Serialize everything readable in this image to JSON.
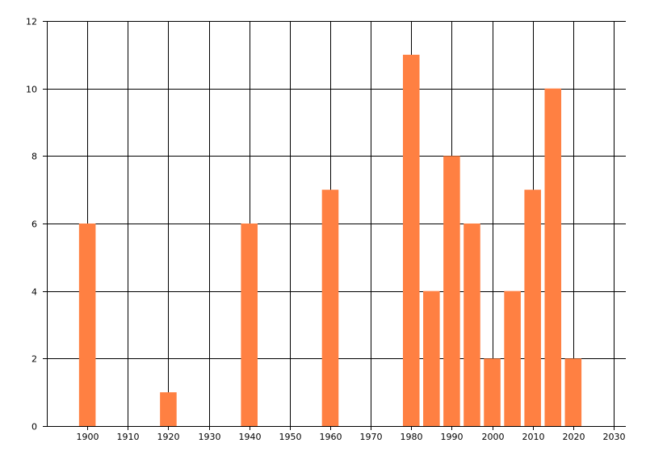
{
  "chart_data": {
    "type": "bar",
    "title": "",
    "xlabel": "",
    "ylabel": "",
    "x": [
      1900,
      1920,
      1940,
      1960,
      1980,
      1985,
      1990,
      1995,
      2000,
      2005,
      2010,
      2015,
      2020
    ],
    "values": [
      6,
      1,
      6,
      7,
      11,
      4,
      8,
      6,
      2,
      4,
      7,
      10,
      2
    ],
    "xlim": [
      1890,
      2033
    ],
    "ylim": [
      0,
      12
    ],
    "xticks": [
      "1900",
      "1910",
      "1920",
      "1930",
      "1940",
      "1950",
      "1960",
      "1970",
      "1980",
      "1990",
      "2000",
      "2010",
      "2020",
      "2030"
    ],
    "yticks": [
      "0",
      "2",
      "4",
      "6",
      "8",
      "10",
      "12"
    ],
    "grid": true,
    "legend": "none",
    "bar_color": "#ff8042",
    "grid_color": "#000000"
  }
}
